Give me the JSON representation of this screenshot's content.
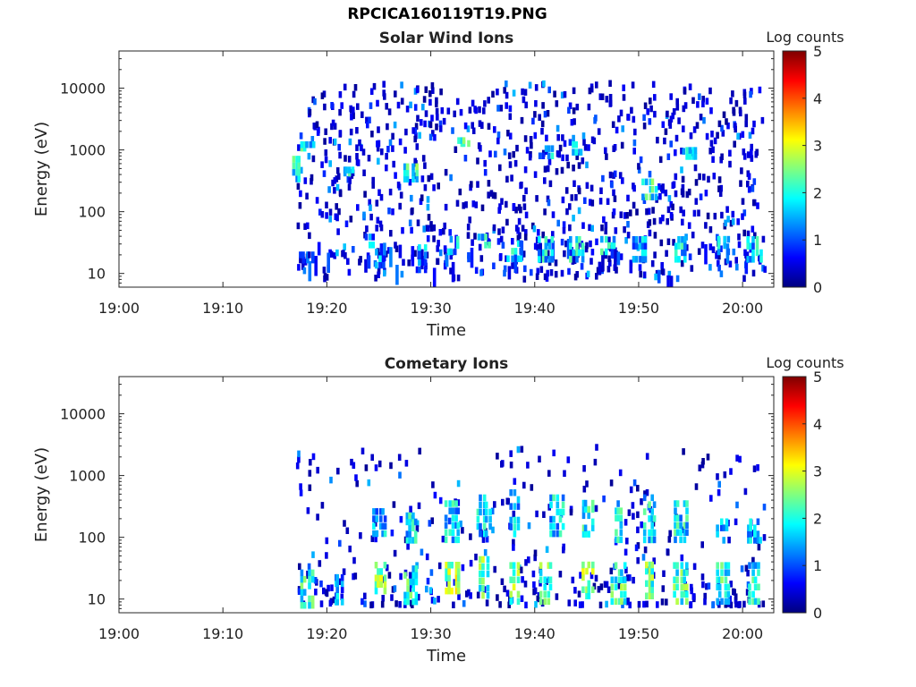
{
  "page_title": "RPCICA160119T19.PNG",
  "chart_data": [
    {
      "type": "heatmap",
      "title": "Solar Wind Ions",
      "xlabel": "Time",
      "ylabel": "Energy (eV)",
      "x_range": [
        "19:00",
        "20:03"
      ],
      "x_ticks": [
        "19:00",
        "19:10",
        "19:20",
        "19:30",
        "19:40",
        "19:50",
        "20:00"
      ],
      "y_scale": "log",
      "y_range": [
        6,
        40000
      ],
      "y_ticks": [
        "10",
        "100",
        "1000",
        "10000"
      ],
      "colorbar": {
        "label": "Log counts",
        "min": 0,
        "max": 5,
        "ticks": [
          "0",
          "1",
          "2",
          "3",
          "4",
          "5"
        ],
        "colormap": "jet"
      },
      "data_start": "19:17",
      "data_end": "20:02",
      "bursts": [
        {
          "time": "19:17",
          "energy": [
            300,
            800
          ],
          "level": 2
        },
        {
          "time": "19:18",
          "energy": [
            15,
            22
          ],
          "level": 0.8
        },
        {
          "time": "19:18",
          "energy": [
            1000,
            1300
          ],
          "level": 2
        },
        {
          "time": "19:22",
          "energy": [
            400,
            500
          ],
          "level": 2
        },
        {
          "time": "19:24",
          "energy": [
            25,
            45
          ],
          "level": 1.5
        },
        {
          "time": "19:25",
          "energy": [
            12,
            25
          ],
          "level": 1.5
        },
        {
          "time": "19:28",
          "energy": [
            300,
            600
          ],
          "level": 2.2
        },
        {
          "time": "19:29",
          "energy": [
            10,
            30
          ],
          "level": 1.4
        },
        {
          "time": "19:32",
          "energy": [
            20,
            40
          ],
          "level": 1.7
        },
        {
          "time": "19:33",
          "energy": [
            1200,
            1500
          ],
          "level": 2.2
        },
        {
          "time": "19:35",
          "energy": [
            25,
            45
          ],
          "level": 2
        },
        {
          "time": "19:38",
          "energy": [
            15,
            35
          ],
          "level": 1.8
        },
        {
          "time": "19:41",
          "energy": [
            15,
            40
          ],
          "level": 1.8
        },
        {
          "time": "19:41",
          "energy": [
            700,
            1200
          ],
          "level": 1.6
        },
        {
          "time": "19:44",
          "energy": [
            15,
            40
          ],
          "level": 2
        },
        {
          "time": "19:44",
          "energy": [
            800,
            1400
          ],
          "level": 1.8
        },
        {
          "time": "19:47",
          "energy": [
            20,
            40
          ],
          "level": 1.9
        },
        {
          "time": "19:50",
          "energy": [
            15,
            40
          ],
          "level": 1.6
        },
        {
          "time": "19:51",
          "energy": [
            150,
            350
          ],
          "level": 2.1
        },
        {
          "time": "19:54",
          "energy": [
            15,
            40
          ],
          "level": 1.8
        },
        {
          "time": "19:55",
          "energy": [
            700,
            1100
          ],
          "level": 1.9
        },
        {
          "time": "19:58",
          "energy": [
            20,
            40
          ],
          "level": 1.6
        },
        {
          "time": "20:01",
          "energy": [
            15,
            40
          ],
          "level": 1.8
        }
      ]
    },
    {
      "type": "heatmap",
      "title": "Cometary Ions",
      "xlabel": "Time",
      "ylabel": "Energy (eV)",
      "x_range": [
        "19:00",
        "20:03"
      ],
      "x_ticks": [
        "19:00",
        "19:10",
        "19:20",
        "19:30",
        "19:40",
        "19:50",
        "20:00"
      ],
      "y_scale": "log",
      "y_range": [
        6,
        40000
      ],
      "y_ticks": [
        "10",
        "100",
        "1000",
        "10000"
      ],
      "colorbar": {
        "label": "Log counts",
        "min": 0,
        "max": 5,
        "ticks": [
          "0",
          "1",
          "2",
          "3",
          "4",
          "5"
        ],
        "colormap": "jet"
      },
      "data_start": "19:17",
      "data_end": "20:02",
      "bursts": [
        {
          "time": "19:18",
          "energy": [
            7,
            30
          ],
          "level": 2.1
        },
        {
          "time": "19:21",
          "energy": [
            8,
            25
          ],
          "level": 1.4
        },
        {
          "time": "19:25",
          "energy": [
            12,
            40
          ],
          "level": 2.6
        },
        {
          "time": "19:25",
          "energy": [
            100,
            300
          ],
          "level": 1.6
        },
        {
          "time": "19:28",
          "energy": [
            8,
            35
          ],
          "level": 2.2
        },
        {
          "time": "19:28",
          "energy": [
            80,
            250
          ],
          "level": 1.8
        },
        {
          "time": "19:32",
          "energy": [
            12,
            40
          ],
          "level": 2.8
        },
        {
          "time": "19:32",
          "energy": [
            80,
            400
          ],
          "level": 1.8
        },
        {
          "time": "19:35",
          "energy": [
            10,
            50
          ],
          "level": 2.4
        },
        {
          "time": "19:35",
          "energy": [
            100,
            500
          ],
          "level": 1.8
        },
        {
          "time": "19:38",
          "energy": [
            8,
            40
          ],
          "level": 2.6
        },
        {
          "time": "19:38",
          "energy": [
            100,
            600
          ],
          "level": 1.8
        },
        {
          "time": "19:41",
          "energy": [
            8,
            40
          ],
          "level": 2.4
        },
        {
          "time": "19:42",
          "energy": [
            100,
            500
          ],
          "level": 1.8
        },
        {
          "time": "19:45",
          "energy": [
            10,
            40
          ],
          "level": 2.6
        },
        {
          "time": "19:45",
          "energy": [
            100,
            400
          ],
          "level": 2
        },
        {
          "time": "19:48",
          "energy": [
            8,
            40
          ],
          "level": 2.3
        },
        {
          "time": "19:48",
          "energy": [
            80,
            400
          ],
          "level": 2
        },
        {
          "time": "19:51",
          "energy": [
            10,
            40
          ],
          "level": 2.4
        },
        {
          "time": "19:51",
          "energy": [
            80,
            500
          ],
          "level": 1.9
        },
        {
          "time": "19:54",
          "energy": [
            8,
            40
          ],
          "level": 2.3
        },
        {
          "time": "19:54",
          "energy": [
            80,
            400
          ],
          "level": 1.9
        },
        {
          "time": "19:58",
          "energy": [
            8,
            40
          ],
          "level": 2.1
        },
        {
          "time": "19:58",
          "energy": [
            80,
            200
          ],
          "level": 1.5
        },
        {
          "time": "20:01",
          "energy": [
            8,
            40
          ],
          "level": 2
        },
        {
          "time": "20:01",
          "energy": [
            80,
            200
          ],
          "level": 1.6
        }
      ]
    }
  ]
}
